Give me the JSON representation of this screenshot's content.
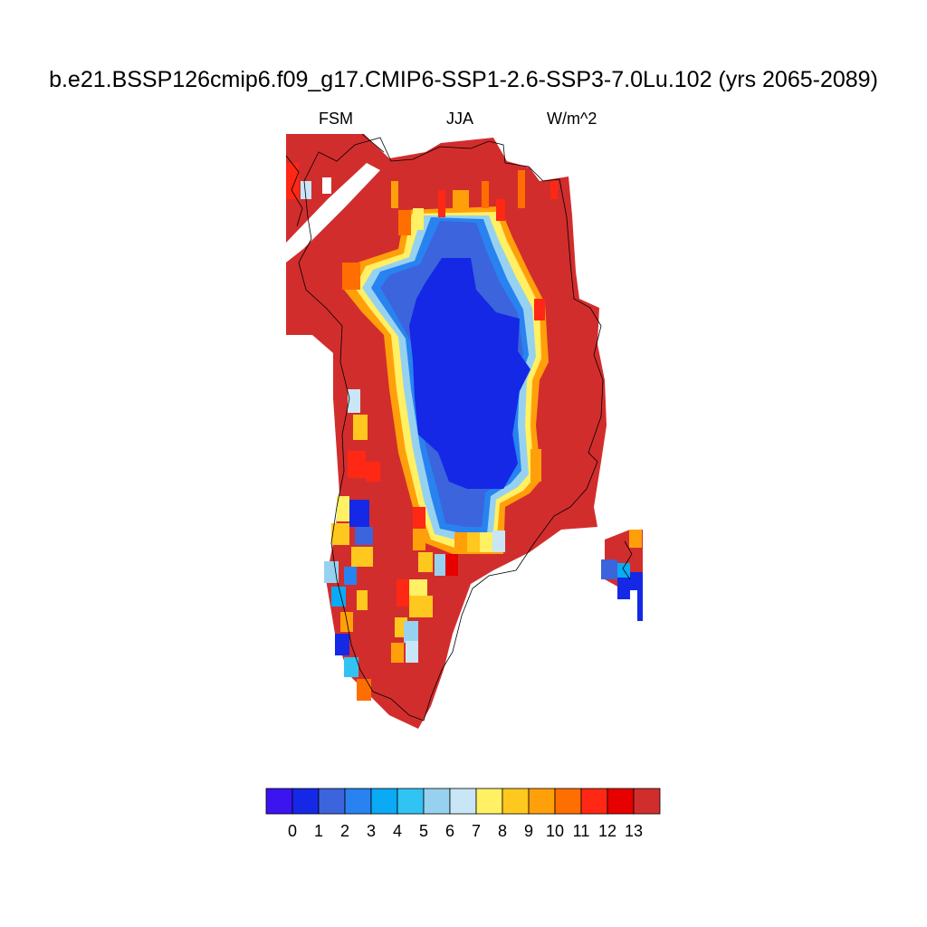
{
  "title": "b.e21.BSSP126cmip6.f09_g17.CMIP6-SSP1-2.6-SSP3-7.0Lu.102 (yrs 2065-2089)",
  "subtitle_left": "FSM",
  "subtitle_center": "JJA",
  "subtitle_right": "W/m^2",
  "colorbar": {
    "colors": [
      "#3c14f0",
      "#1428e6",
      "#3c64dc",
      "#2882f0",
      "#0aaaf5",
      "#32c3f5",
      "#96d2f0",
      "#c8e6f5",
      "#fff064",
      "#ffc81e",
      "#ffa00a",
      "#ff6e00",
      "#ff2814",
      "#e60000",
      "#d22d2d"
    ],
    "tick_labels": [
      "0",
      "1",
      "2",
      "3",
      "4",
      "5",
      "6",
      "7",
      "8",
      "9",
      "10",
      "11",
      "12",
      "13"
    ]
  }
}
